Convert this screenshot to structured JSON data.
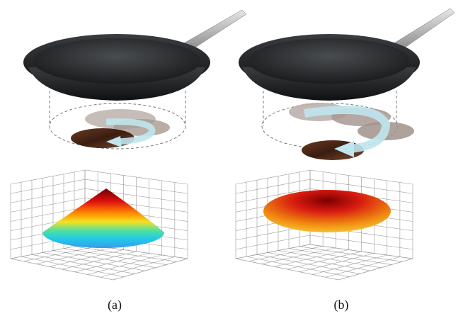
{
  "figure": {
    "panels": [
      {
        "label": "(a)"
      },
      {
        "label": "(b)"
      }
    ]
  }
}
